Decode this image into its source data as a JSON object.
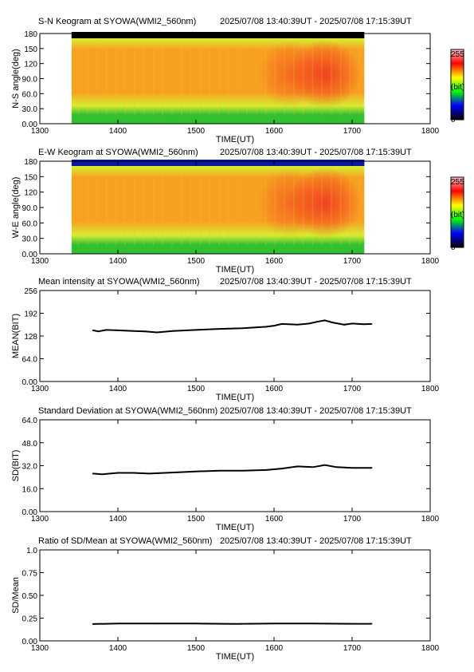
{
  "time_range": "2025/07/08 13:40:39UT - 2025/07/08 17:15:39UT",
  "x_axis": {
    "label": "TIME(UT)",
    "ticks": [
      "1300",
      "1400",
      "1500",
      "1600",
      "1700",
      "1800"
    ],
    "range": [
      1300,
      1800
    ]
  },
  "colorbar": {
    "max_label": "255",
    "unit_label": "(bit)",
    "min_label": "0",
    "colors": [
      "#000000",
      "#0000ff",
      "#00ff00",
      "#ffff00",
      "#ff0000",
      "#ffc8c8"
    ]
  },
  "keogram_colors": {
    "edge_low": "#30c030",
    "edge_mid": "#d8ec30",
    "core": "#f8a020",
    "hot": "#f03020",
    "top_band": "#000000"
  },
  "chart_data": [
    {
      "type": "heatmap",
      "title": "S-N Keogram at SYOWA(WMI2_560nm)",
      "ylabel": "N-S angle(deg)",
      "xlabel": "TIME(UT)",
      "y_ticks": [
        "0.00",
        "30.0",
        "60.0",
        "90.0",
        "120",
        "150",
        "180"
      ],
      "ylim": [
        0,
        180
      ],
      "xlim": [
        1300,
        1800
      ],
      "data_start": 1340.65,
      "data_end": 1715.65,
      "hot_spots": [
        {
          "x": 1620,
          "strength": 0.5
        },
        {
          "x": 1665,
          "strength": 0.9
        }
      ],
      "top_band_color": "#000000"
    },
    {
      "type": "heatmap",
      "title": "E-W Keogram at SYOWA(WMI2_560nm)",
      "ylabel": "W-E angle(deg)",
      "xlabel": "TIME(UT)",
      "y_ticks": [
        "0.00",
        "30.0",
        "60.0",
        "90.0",
        "120",
        "150",
        "180"
      ],
      "ylim": [
        0,
        180
      ],
      "xlim": [
        1300,
        1800
      ],
      "data_start": 1340.65,
      "data_end": 1715.65,
      "hot_spots": [
        {
          "x": 1620,
          "strength": 0.5
        },
        {
          "x": 1665,
          "strength": 0.9
        }
      ],
      "top_band_color": "#0a1aa0"
    },
    {
      "type": "line",
      "title": "Mean intensity at SYOWA(WMI2_560nm)",
      "ylabel": "MEAN(BIT)",
      "xlabel": "TIME(UT)",
      "y_ticks": [
        "0.00",
        "64.0",
        "128",
        "192",
        "256"
      ],
      "ylim": [
        0,
        256
      ],
      "xlim": [
        1300,
        1800
      ],
      "series": [
        {
          "x": [
            1368,
            1375,
            1385,
            1400,
            1420,
            1435,
            1450,
            1470,
            1500,
            1530,
            1560,
            1590,
            1600,
            1610,
            1630,
            1645,
            1655,
            1665,
            1675,
            1690,
            1700,
            1715,
            1725
          ],
          "values": [
            144,
            141,
            145,
            144,
            142,
            141,
            138,
            142,
            145,
            148,
            150,
            154,
            157,
            162,
            160,
            163,
            168,
            172,
            166,
            160,
            163,
            161,
            162
          ]
        }
      ]
    },
    {
      "type": "line",
      "title": "Standard Deviation at SYOWA(WMI2_560nm)",
      "ylabel": "SD(BIT)",
      "xlabel": "TIME(UT)",
      "y_ticks": [
        "0.00",
        "16.0",
        "32.0",
        "48.0",
        "64.0"
      ],
      "ylim": [
        0,
        64
      ],
      "xlim": [
        1300,
        1800
      ],
      "series": [
        {
          "x": [
            1368,
            1380,
            1400,
            1420,
            1440,
            1460,
            1480,
            1500,
            1530,
            1560,
            1590,
            1610,
            1630,
            1650,
            1665,
            1680,
            1700,
            1725
          ],
          "values": [
            26.5,
            26,
            27,
            27,
            26.5,
            27,
            27.5,
            28,
            28.5,
            28.5,
            29,
            30,
            31.5,
            31,
            32.5,
            31,
            30.5,
            30.5
          ]
        }
      ]
    },
    {
      "type": "line",
      "title": "Ratio of SD/Mean at SYOWA(WMI2_560nm)",
      "ylabel": "SD/Mean",
      "xlabel": "TIME(UT)",
      "y_ticks": [
        "0.00",
        "0.25",
        "0.50",
        "0.75",
        "1.0"
      ],
      "ylim": [
        0,
        1
      ],
      "xlim": [
        1300,
        1800
      ],
      "series": [
        {
          "x": [
            1368,
            1400,
            1450,
            1500,
            1550,
            1600,
            1650,
            1700,
            1725
          ],
          "values": [
            0.185,
            0.19,
            0.19,
            0.19,
            0.187,
            0.19,
            0.19,
            0.188,
            0.188
          ]
        }
      ]
    }
  ]
}
